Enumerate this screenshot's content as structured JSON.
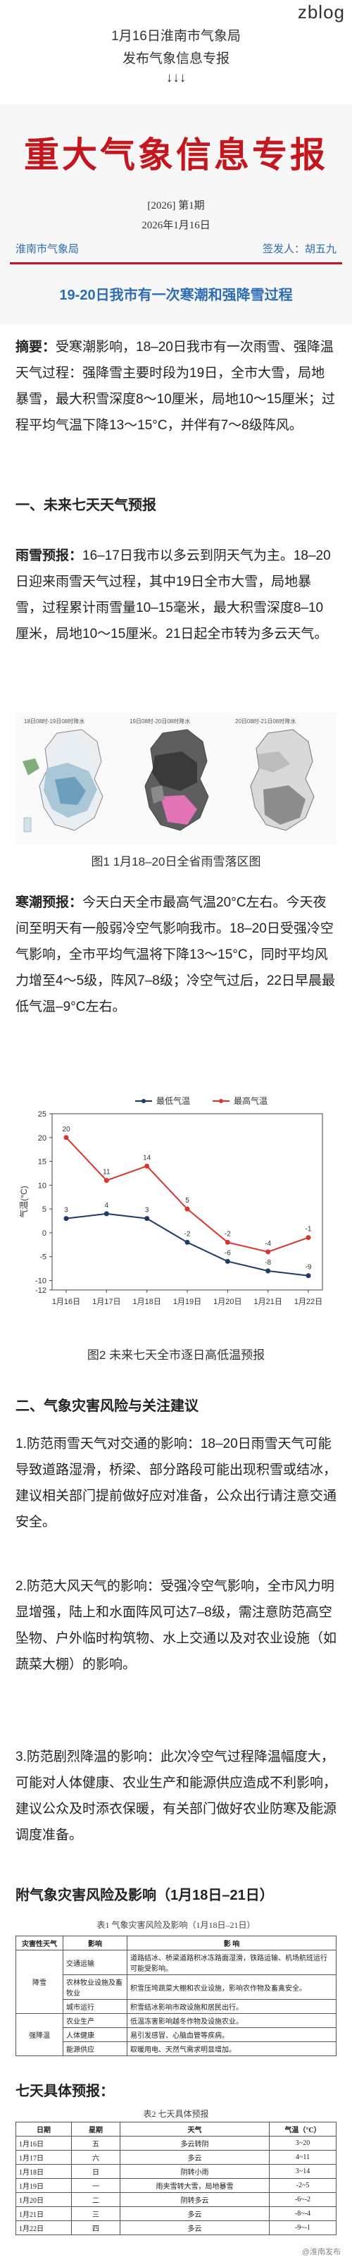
{
  "site": "zblog",
  "header": {
    "line1": "1月16日淮南市气象局",
    "line2": "发布气象信息专报",
    "line3": "↓↓↓"
  },
  "doc": {
    "title": "重大气象信息专报",
    "issue": "[2026] 第1期",
    "date": "2026年1月16日",
    "org": "淮南市气象局",
    "signer": "签发人：胡五九",
    "headline": "19-20日我市有一次寒潮和强降雪过程"
  },
  "summary": {
    "label": "摘要：",
    "text": "受寒潮影响，18–20日我市有一次雨雪、强降温天气过程：强降雪主要时段为19日，全市大雪，局地暴雪，最大积雪深度8～10厘米，局地10～15厘米；过程平均气温下降13～15°C，并伴有7～8级阵风。"
  },
  "section1": {
    "title": "一、未来七天天气预报"
  },
  "rain": {
    "label": "雨雪预报：",
    "text": "16–17日我市以多云到阴天气为主。18–20日迎来雨雪天气过程，其中19日全市大雪，局地暴雪，过程累计雨雪量10–15毫米，最大积雪深度8–10厘米，局地10～15厘米。21日起全市转为多云天气。"
  },
  "maps": {
    "panels": [
      {
        "title": "18日08时-19日08时降水"
      },
      {
        "title": "19日08时-20日08时降水"
      },
      {
        "title": "20日08时-21日08时降水"
      }
    ],
    "caption": "图1 1月18–20日全省雨雪落区图"
  },
  "temp": {
    "label": "寒潮预报：",
    "text": "今天白天全市最高气温20°C左右。今天夜间至明天有一般弱冷空气影响我市。18–20日受强冷空气影响，全市平均气温将下降13～15°C，同时平均风力增至4～5级，阵风7–8级；冷空气过后，22日早晨最低气温–9°C左右。"
  },
  "chart_data": {
    "type": "line",
    "categories": [
      "1月16日",
      "1月17日",
      "1月18日",
      "1月19日",
      "1月20日",
      "1月21日",
      "1月22日"
    ],
    "series": [
      {
        "name": "最低气温",
        "values": [
          3,
          4,
          3,
          -2,
          -6,
          -8,
          -9
        ],
        "color": "#1f3a68"
      },
      {
        "name": "最高气温",
        "values": [
          20,
          11,
          14,
          5,
          -2,
          -4,
          -1
        ],
        "color": "#d9352b"
      }
    ],
    "ylabel": "气温(°C)",
    "yticks": [
      25,
      20,
      15,
      10,
      5,
      0,
      -5,
      -10,
      -12
    ],
    "ylim": [
      -12,
      25
    ],
    "caption": "图2 未来七天全市逐日高低温预报"
  },
  "section2": {
    "title": "二、气象灾害风险与关注建议",
    "items": [
      "1.防范雨雪天气对交通的影响：18–20日雨雪天气可能导致道路湿滑，桥梁、部分路段可能出现积雪或结冰，建议相关部门提前做好应对准备，公众出行请注意交通安全。",
      "2.防范大风天气的影响：受强冷空气影响，全市风力明显增强，陆上和水面阵风可达7–8级，需注意防范高空坠物、户外临时构筑物、水上交通以及对农业设施（如蔬菜大棚）的影响。",
      "3.防范剧烈降温的影响：此次冷空气过程降温幅度大，可能对人体健康、农业生产和能源供应造成不利影响，建议公众及时添衣保暖，有关部门做好农业防寒及能源调度准备。"
    ]
  },
  "appendix": {
    "title": "附气象灾害风险及影响（1月18日–21日）",
    "table1": {
      "caption": "表1 气象灾害风险及影响（1月18日–21日）",
      "headers": [
        "灾害性天气",
        "影响",
        "影 响"
      ],
      "rows": [
        {
          "hazard": "降雪",
          "impact": "交通运输",
          "desc": "道路结冰、桥梁道路积冰冻路面湿滑，铁路运输、机场航班运行可能受影响。"
        },
        {
          "hazard": "降雪",
          "impact": "农林牧业设施及畜牧业",
          "desc": "积雪压垮蔬菜大棚和农业设施，影响农作物及畜禽安全。"
        },
        {
          "hazard": "降雪",
          "impact": "城市运行",
          "desc": "积雪结冰影响市政设施和居民出行。"
        },
        {
          "hazard": "强降温",
          "impact": "农业生产",
          "desc": "低温冻害影响越冬作物及设施农业。"
        },
        {
          "hazard": "强降温",
          "impact": "人体健康",
          "desc": "易引发感冒、心脑血管等疾病。"
        },
        {
          "hazard": "强降温",
          "impact": "能源供应",
          "desc": "取暖用电、天然气需求明显增加。"
        }
      ]
    }
  },
  "forecast": {
    "title": "七天具体预报：",
    "caption": "表2 七天具体预报",
    "headers": [
      "日期",
      "星期",
      "天气",
      "气温（°C）"
    ],
    "rows": [
      [
        "1月16日",
        "五",
        "多云转阴",
        "3~20"
      ],
      [
        "1月17日",
        "六",
        "多云",
        "4~11"
      ],
      [
        "1月18日",
        "日",
        "阴转小雨",
        "3~14"
      ],
      [
        "1月19日",
        "一",
        "雨夹雪转大雪，局地暴雪",
        "-2~5"
      ],
      [
        "1月20日",
        "二",
        "阴转多云",
        "-6~-2"
      ],
      [
        "1月21日",
        "三",
        "多云",
        "-8~-4"
      ],
      [
        "1月22日",
        "四",
        "多云",
        "-9~-1"
      ]
    ]
  },
  "watermark": "@淮南发布"
}
